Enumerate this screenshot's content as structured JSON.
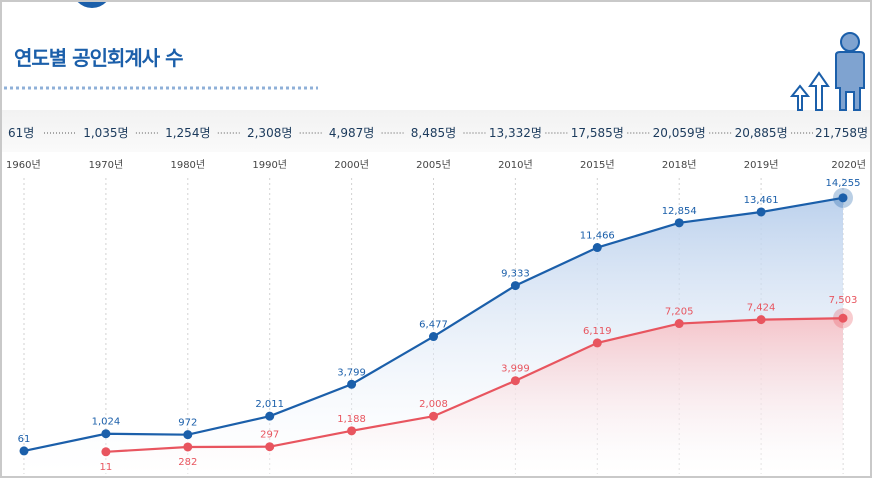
{
  "title": "연도별 공인회계사 수",
  "colors": {
    "blue": "#1b5faa",
    "red": "#e8555f",
    "dark": "#1b3a5c",
    "icon": "#1b5faa"
  },
  "icons": [
    "figure-icon",
    "arrow-up-icon"
  ],
  "chart_data": {
    "type": "line",
    "categories": [
      "1960년",
      "1970년",
      "1980년",
      "1990년",
      "2000년",
      "2005년",
      "2010년",
      "2015년",
      "2018년",
      "2019년",
      "2020년"
    ],
    "totals": [
      "61명",
      "1,035명",
      "1,254명",
      "2,308명",
      "4,987명",
      "8,485명",
      "13,332명",
      "17,585명",
      "20,059명",
      "20,885명",
      "21,758명"
    ],
    "series": [
      {
        "color": "#1b5faa",
        "values": [
          61,
          1024,
          972,
          2011,
          3799,
          6477,
          9333,
          11466,
          12854,
          13461,
          14255
        ],
        "labels": [
          "61",
          "1,024",
          "972",
          "2,011",
          "3,799",
          "6,477",
          "9,333",
          "11,466",
          "12,854",
          "13,461",
          "14,255"
        ]
      },
      {
        "color": "#e8555f",
        "values": [
          null,
          11,
          282,
          297,
          1188,
          2008,
          3999,
          6119,
          7205,
          7424,
          7503
        ],
        "labels": [
          null,
          "11",
          "282",
          "297",
          "1,188",
          "2,008",
          "3,999",
          "6,119",
          "7,205",
          "7,424",
          "7,503"
        ]
      }
    ],
    "grid": true,
    "legend": "none"
  }
}
